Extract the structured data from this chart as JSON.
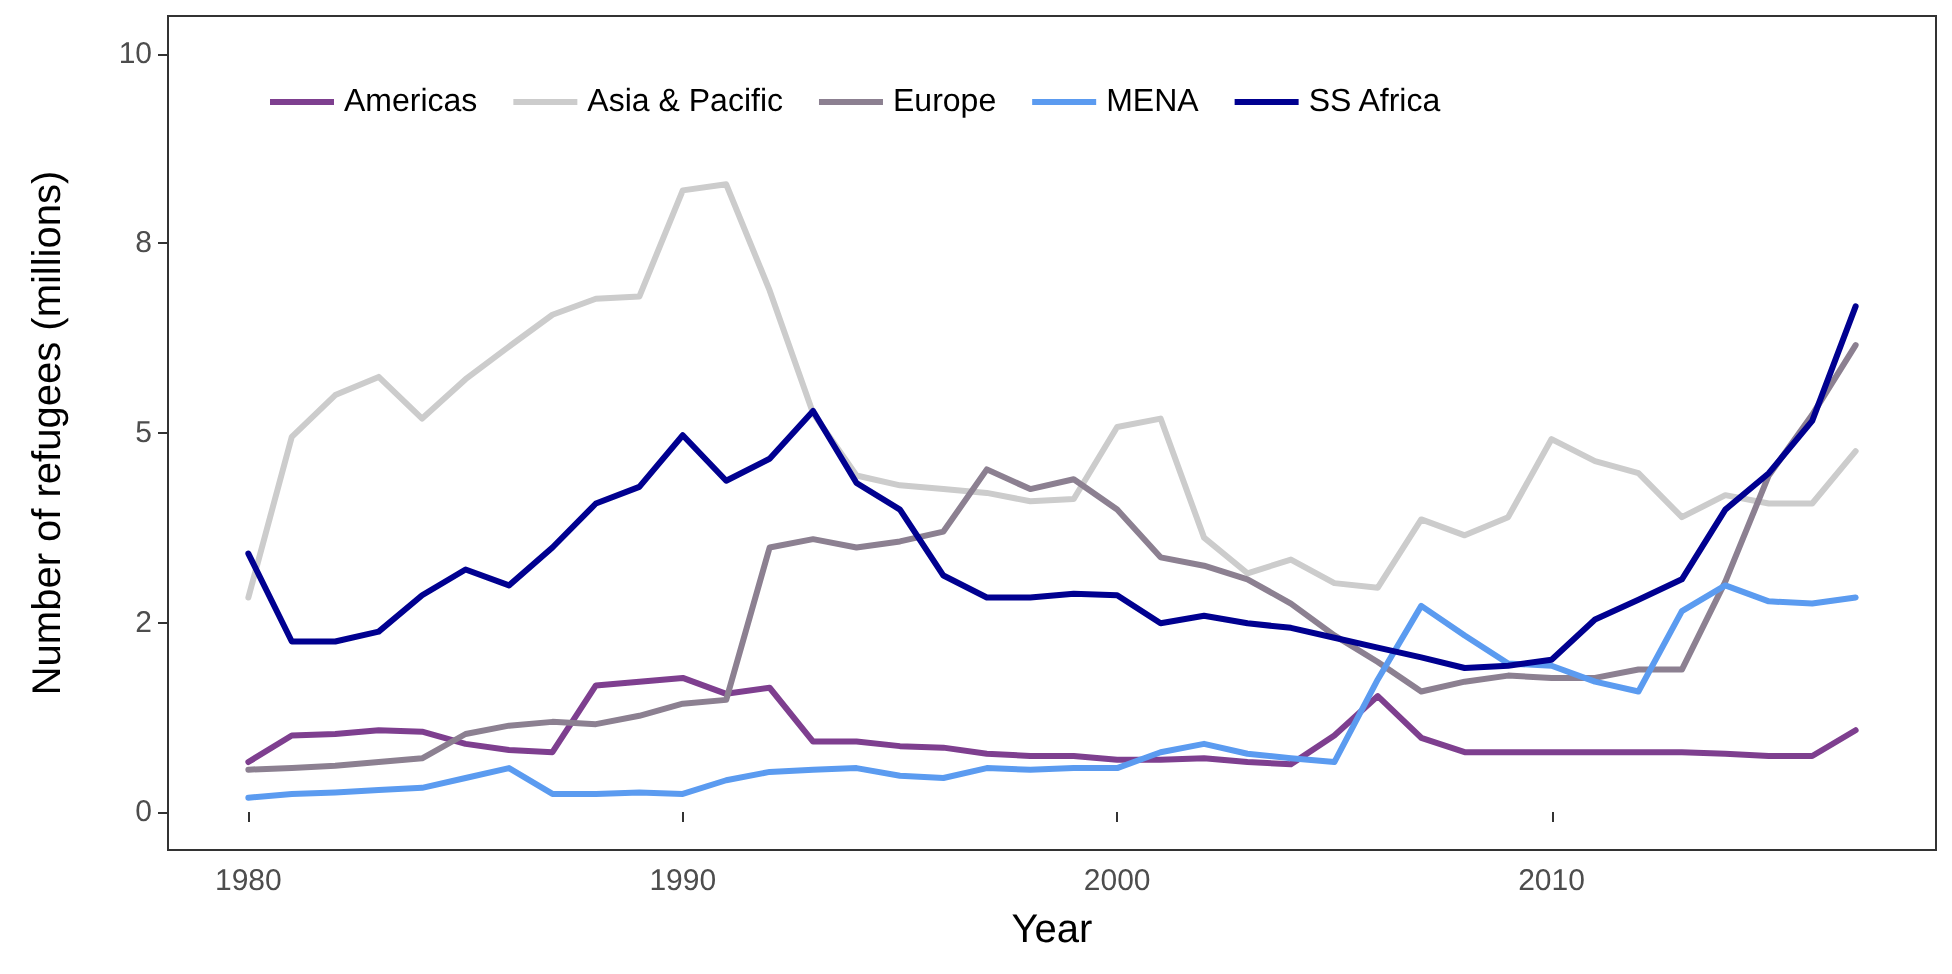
{
  "chart_data": {
    "type": "line",
    "xlabel": "Year",
    "ylabel": "Number of refugees (millions)",
    "x": [
      1980,
      1981,
      1982,
      1983,
      1984,
      1985,
      1986,
      1987,
      1988,
      1989,
      1990,
      1991,
      1992,
      1993,
      1994,
      1995,
      1996,
      1997,
      1998,
      1999,
      2000,
      2001,
      2002,
      2003,
      2004,
      2005,
      2006,
      2007,
      2008,
      2009,
      2010,
      2011,
      2012,
      2013,
      2014,
      2015,
      2016,
      2017
    ],
    "series": [
      {
        "name": "Americas",
        "color": "#7e3f8f",
        "values": [
          0.66,
          1.01,
          1.03,
          1.08,
          1.06,
          0.9,
          0.82,
          0.79,
          1.67,
          1.72,
          1.77,
          1.56,
          1.64,
          0.93,
          0.93,
          0.87,
          0.85,
          0.77,
          0.74,
          0.74,
          0.69,
          0.69,
          0.71,
          0.66,
          0.63,
          1.01,
          1.53,
          0.98,
          0.79,
          0.79,
          0.79,
          0.79,
          0.79,
          0.79,
          0.77,
          0.74,
          0.74,
          1.08
        ]
      },
      {
        "name": "Asia & Pacific",
        "color": "#cccccc",
        "values": [
          2.83,
          4.95,
          5.5,
          5.74,
          5.19,
          5.71,
          6.14,
          6.56,
          6.77,
          6.8,
          8.2,
          8.28,
          6.88,
          5.26,
          4.44,
          4.31,
          4.26,
          4.21,
          4.1,
          4.13,
          5.08,
          5.19,
          3.62,
          3.15,
          3.33,
          3.02,
          2.96,
          3.86,
          3.65,
          3.89,
          4.92,
          4.63,
          4.47,
          3.89,
          4.18,
          4.07,
          4.07,
          4.76
        ]
      },
      {
        "name": "Europe",
        "color": "#8c8091",
        "values": [
          0.56,
          0.58,
          0.61,
          0.66,
          0.71,
          1.03,
          1.14,
          1.19,
          1.16,
          1.27,
          1.43,
          1.48,
          3.49,
          3.6,
          3.49,
          3.57,
          3.7,
          4.52,
          4.26,
          4.39,
          3.99,
          3.36,
          3.25,
          3.07,
          2.75,
          2.33,
          1.98,
          1.59,
          1.72,
          1.8,
          1.77,
          1.77,
          1.88,
          1.88,
          3.04,
          4.44,
          5.24,
          6.16
        ]
      },
      {
        "name": "MENA",
        "color": "#5b9bf0",
        "values": [
          0.19,
          0.24,
          0.26,
          0.29,
          0.32,
          0.45,
          0.58,
          0.24,
          0.24,
          0.26,
          0.24,
          0.42,
          0.53,
          0.56,
          0.58,
          0.48,
          0.45,
          0.58,
          0.56,
          0.58,
          0.58,
          0.79,
          0.9,
          0.77,
          0.71,
          0.66,
          1.75,
          2.72,
          2.33,
          1.96,
          1.93,
          1.72,
          1.59,
          2.65,
          2.99,
          2.78,
          2.75,
          2.83
        ]
      },
      {
        "name": "SS Africa",
        "color": "#000090",
        "values": [
          3.41,
          2.25,
          2.25,
          2.38,
          2.86,
          3.2,
          2.99,
          3.49,
          4.07,
          4.29,
          4.97,
          4.37,
          4.66,
          5.29,
          4.34,
          3.99,
          3.12,
          2.83,
          2.83,
          2.88,
          2.86,
          2.49,
          2.59,
          2.49,
          2.43,
          2.3,
          2.17,
          2.04,
          1.9,
          1.93,
          2.01,
          2.54,
          2.8,
          3.07,
          3.99,
          4.47,
          5.16,
          6.67
        ]
      }
    ],
    "xlim": [
      1978.15,
      2018.85
    ],
    "xticks": [
      1980,
      1990,
      2000,
      2010
    ],
    "ylim": [
      -0.5,
      10.5
    ],
    "yticks": [
      0,
      {
        "value": 2.5,
        "label": "2"
      },
      5,
      {
        "value": 7.5,
        "label": "8"
      },
      10
    ],
    "grid": false,
    "legend": "top left",
    "marker": "none",
    "line_style": "solid"
  }
}
